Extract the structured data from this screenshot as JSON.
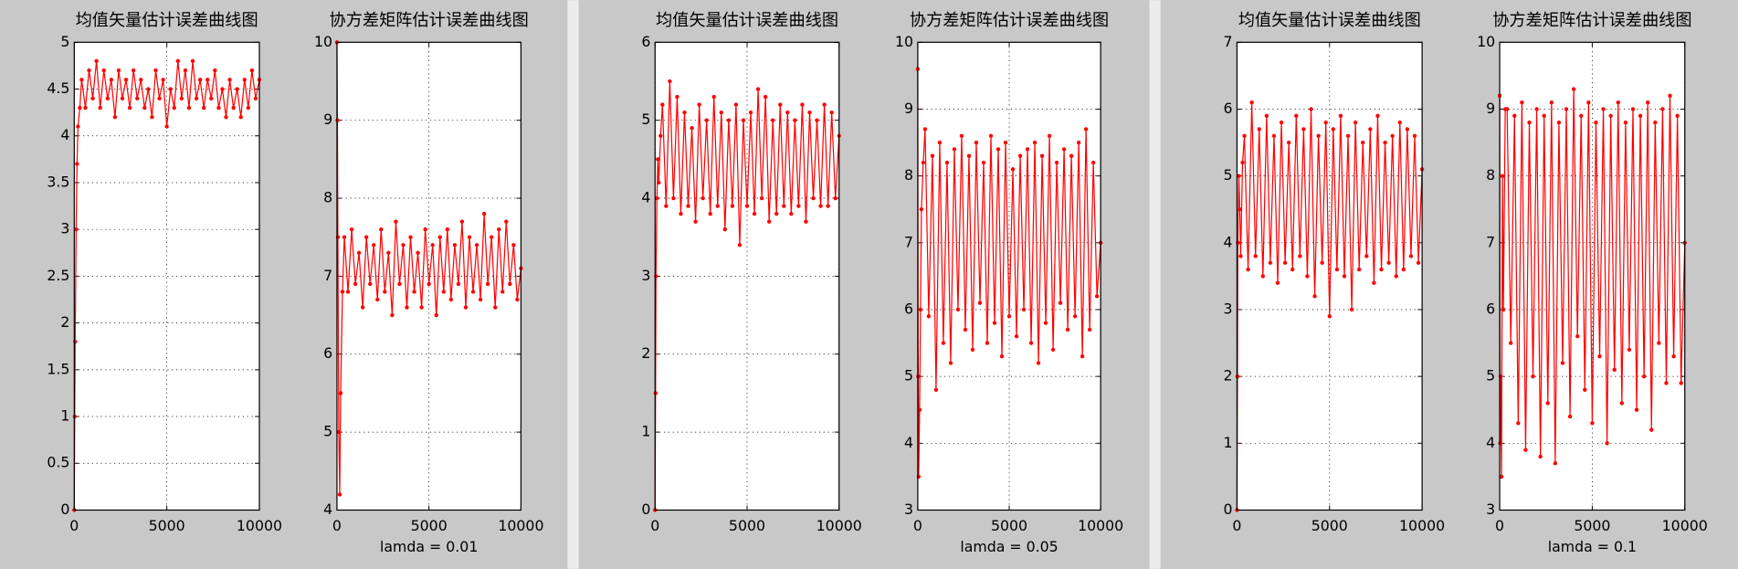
{
  "chart_data": [
    {
      "type": "line",
      "title": "均值矢量估计误差曲线图",
      "color": "#ff0000",
      "grid": true,
      "xlim": [
        0,
        10000
      ],
      "xticks": [
        0,
        5000,
        10000
      ],
      "ylim": [
        0,
        5
      ],
      "yticks": [
        0,
        0.5,
        1,
        1.5,
        2,
        2.5,
        3,
        3.5,
        4,
        4.5,
        5
      ],
      "x": [
        0,
        25,
        50,
        100,
        150,
        200,
        300,
        400,
        600,
        800,
        1000,
        1200,
        1400,
        1600,
        1800,
        2000,
        2200,
        2400,
        2600,
        2800,
        3000,
        3200,
        3400,
        3600,
        3800,
        4000,
        4200,
        4400,
        4600,
        4800,
        5000,
        5200,
        5400,
        5600,
        5800,
        6000,
        6200,
        6400,
        6600,
        6800,
        7000,
        7200,
        7400,
        7600,
        7800,
        8000,
        8200,
        8400,
        8600,
        8800,
        9000,
        9200,
        9400,
        9600,
        9800,
        10000
      ],
      "values": [
        0,
        1.0,
        1.8,
        3.0,
        3.7,
        4.1,
        4.3,
        4.6,
        4.3,
        4.7,
        4.4,
        4.8,
        4.3,
        4.7,
        4.4,
        4.6,
        4.2,
        4.7,
        4.4,
        4.6,
        4.3,
        4.7,
        4.4,
        4.6,
        4.3,
        4.5,
        4.2,
        4.7,
        4.4,
        4.6,
        4.1,
        4.5,
        4.3,
        4.8,
        4.4,
        4.7,
        4.3,
        4.8,
        4.4,
        4.6,
        4.3,
        4.6,
        4.4,
        4.7,
        4.3,
        4.5,
        4.2,
        4.6,
        4.3,
        4.5,
        4.2,
        4.6,
        4.3,
        4.7,
        4.4,
        4.6
      ]
    },
    {
      "type": "line",
      "title": "协方差矩阵估计误差曲线图",
      "x_label": "lamda = 0.01",
      "color": "#ff0000",
      "grid": true,
      "xlim": [
        0,
        10000
      ],
      "xticks": [
        0,
        5000,
        10000
      ],
      "ylim": [
        4,
        10
      ],
      "yticks": [
        4,
        5,
        6,
        7,
        8,
        9,
        10
      ],
      "x": [
        0,
        25,
        50,
        100,
        150,
        200,
        300,
        400,
        600,
        800,
        1000,
        1200,
        1400,
        1600,
        1800,
        2000,
        2200,
        2400,
        2600,
        2800,
        3000,
        3200,
        3400,
        3600,
        3800,
        4000,
        4200,
        4400,
        4600,
        4800,
        5000,
        5200,
        5400,
        5600,
        5800,
        6000,
        6200,
        6400,
        6600,
        6800,
        7000,
        7200,
        7400,
        7600,
        7800,
        8000,
        8200,
        8400,
        8600,
        8800,
        9000,
        9200,
        9400,
        9600,
        9800,
        10000
      ],
      "values": [
        10,
        9.0,
        7.5,
        5.0,
        4.2,
        5.5,
        6.8,
        7.5,
        6.8,
        7.6,
        6.9,
        7.3,
        6.6,
        7.5,
        6.9,
        7.4,
        6.7,
        7.6,
        6.8,
        7.3,
        6.5,
        7.7,
        6.9,
        7.4,
        6.6,
        7.5,
        6.8,
        7.3,
        6.6,
        7.6,
        6.9,
        7.4,
        6.5,
        7.5,
        6.8,
        7.6,
        6.7,
        7.4,
        6.9,
        7.7,
        6.6,
        7.5,
        6.8,
        7.4,
        6.7,
        7.8,
        6.9,
        7.5,
        6.6,
        7.6,
        6.8,
        7.7,
        6.9,
        7.4,
        6.7,
        7.1
      ]
    },
    {
      "type": "line",
      "title": "均值矢量估计误差曲线图",
      "color": "#ff0000",
      "grid": true,
      "xlim": [
        0,
        10000
      ],
      "xticks": [
        0,
        5000,
        10000
      ],
      "ylim": [
        0,
        6
      ],
      "yticks": [
        0,
        1,
        2,
        3,
        4,
        5,
        6
      ],
      "x": [
        0,
        25,
        50,
        100,
        150,
        200,
        300,
        400,
        600,
        800,
        1000,
        1200,
        1400,
        1600,
        1800,
        2000,
        2200,
        2400,
        2600,
        2800,
        3000,
        3200,
        3400,
        3600,
        3800,
        4000,
        4200,
        4400,
        4600,
        4800,
        5000,
        5200,
        5400,
        5600,
        5800,
        6000,
        6200,
        6400,
        6600,
        6800,
        7000,
        7200,
        7400,
        7600,
        7800,
        8000,
        8200,
        8400,
        8600,
        8800,
        9000,
        9200,
        9400,
        9600,
        9800,
        10000
      ],
      "values": [
        0,
        1.5,
        3.0,
        4.0,
        4.5,
        4.2,
        4.8,
        5.2,
        3.9,
        5.5,
        4.0,
        5.3,
        3.8,
        5.1,
        3.9,
        4.9,
        3.7,
        5.2,
        4.0,
        5.0,
        3.8,
        5.3,
        3.9,
        5.1,
        3.6,
        5.0,
        3.9,
        5.2,
        3.4,
        5.0,
        3.9,
        5.1,
        3.8,
        5.4,
        4.0,
        5.3,
        3.7,
        5.0,
        3.8,
        5.2,
        3.9,
        5.1,
        3.8,
        5.0,
        3.9,
        5.2,
        3.7,
        5.1,
        4.0,
        5.0,
        3.9,
        5.2,
        3.9,
        5.1,
        4.0,
        4.8
      ]
    },
    {
      "type": "line",
      "title": "协方差矩阵估计误差曲线图",
      "x_label": "lamda = 0.05",
      "color": "#ff0000",
      "grid": true,
      "xlim": [
        0,
        10000
      ],
      "xticks": [
        0,
        5000,
        10000
      ],
      "ylim": [
        3,
        10
      ],
      "yticks": [
        3,
        4,
        5,
        6,
        7,
        8,
        9,
        10
      ],
      "x": [
        0,
        25,
        50,
        100,
        150,
        200,
        300,
        400,
        600,
        800,
        1000,
        1200,
        1400,
        1600,
        1800,
        2000,
        2200,
        2400,
        2600,
        2800,
        3000,
        3200,
        3400,
        3600,
        3800,
        4000,
        4200,
        4400,
        4600,
        4800,
        5000,
        5200,
        5400,
        5600,
        5800,
        6000,
        6200,
        6400,
        6600,
        6800,
        7000,
        7200,
        7400,
        7600,
        7800,
        8000,
        8200,
        8400,
        8600,
        8800,
        9000,
        9200,
        9400,
        9600,
        9800,
        10000
      ],
      "values": [
        9.6,
        5.0,
        3.5,
        4.5,
        6.0,
        7.5,
        8.2,
        8.7,
        5.9,
        8.3,
        4.8,
        8.5,
        5.5,
        8.2,
        5.2,
        8.4,
        6.0,
        8.6,
        5.7,
        8.3,
        5.4,
        8.5,
        6.1,
        8.2,
        5.5,
        8.6,
        5.8,
        8.4,
        5.3,
        8.5,
        5.9,
        8.1,
        5.6,
        8.3,
        6.0,
        8.4,
        5.5,
        8.5,
        5.2,
        8.3,
        5.8,
        8.6,
        5.4,
        8.2,
        6.1,
        8.4,
        5.7,
        8.3,
        5.9,
        8.5,
        5.3,
        8.7,
        5.7,
        8.2,
        6.2,
        7.0
      ]
    },
    {
      "type": "line",
      "title": "均值矢量估计误差曲线图",
      "color": "#ff0000",
      "grid": true,
      "xlim": [
        0,
        10000
      ],
      "xticks": [
        0,
        5000,
        10000
      ],
      "ylim": [
        0,
        7
      ],
      "yticks": [
        0,
        1,
        2,
        3,
        4,
        5,
        6,
        7
      ],
      "x": [
        0,
        25,
        50,
        100,
        150,
        200,
        300,
        400,
        600,
        800,
        1000,
        1200,
        1400,
        1600,
        1800,
        2000,
        2200,
        2400,
        2600,
        2800,
        3000,
        3200,
        3400,
        3600,
        3800,
        4000,
        4200,
        4400,
        4600,
        4800,
        5000,
        5200,
        5400,
        5600,
        5800,
        6000,
        6200,
        6400,
        6600,
        6800,
        7000,
        7200,
        7400,
        7600,
        7800,
        8000,
        8200,
        8400,
        8600,
        8800,
        9000,
        9200,
        9400,
        9600,
        9800,
        10000
      ],
      "values": [
        0,
        2.0,
        4.0,
        5.0,
        4.5,
        3.8,
        5.2,
        5.6,
        3.6,
        6.1,
        3.8,
        5.7,
        3.5,
        5.9,
        3.7,
        5.6,
        3.4,
        5.8,
        3.7,
        5.5,
        3.6,
        5.9,
        3.8,
        5.7,
        3.5,
        6.0,
        3.2,
        5.6,
        3.7,
        5.8,
        2.9,
        5.7,
        3.6,
        5.9,
        3.5,
        5.6,
        3.0,
        5.8,
        3.6,
        5.5,
        3.8,
        5.7,
        3.4,
        5.9,
        3.6,
        5.5,
        3.7,
        5.6,
        3.5,
        5.8,
        3.6,
        5.7,
        3.8,
        5.6,
        3.7,
        5.1
      ]
    },
    {
      "type": "line",
      "title": "协方差矩阵估计误差曲线图",
      "x_label": "lamda = 0.1",
      "color": "#ff0000",
      "grid": true,
      "xlim": [
        0,
        10000
      ],
      "xticks": [
        0,
        5000,
        10000
      ],
      "ylim": [
        3,
        10
      ],
      "yticks": [
        3,
        4,
        5,
        6,
        7,
        8,
        9,
        10
      ],
      "x": [
        0,
        25,
        50,
        100,
        150,
        200,
        300,
        400,
        600,
        800,
        1000,
        1200,
        1400,
        1600,
        1800,
        2000,
        2200,
        2400,
        2600,
        2800,
        3000,
        3200,
        3400,
        3600,
        3800,
        4000,
        4200,
        4400,
        4600,
        4800,
        5000,
        5200,
        5400,
        5600,
        5800,
        6000,
        6200,
        6400,
        6600,
        6800,
        7000,
        7200,
        7400,
        7600,
        7800,
        8000,
        8200,
        8400,
        8600,
        8800,
        9000,
        9200,
        9400,
        9600,
        9800,
        10000
      ],
      "values": [
        9.2,
        4.0,
        5.0,
        3.5,
        8.0,
        6.0,
        9.0,
        9.0,
        5.5,
        8.9,
        4.3,
        9.1,
        3.9,
        8.8,
        5.0,
        9.0,
        3.8,
        8.9,
        4.6,
        9.1,
        3.7,
        8.8,
        5.2,
        9.0,
        4.4,
        9.3,
        5.6,
        8.9,
        4.8,
        9.1,
        4.3,
        8.8,
        5.3,
        9.0,
        4.0,
        8.9,
        5.1,
        9.1,
        4.6,
        8.8,
        5.4,
        9.0,
        4.5,
        8.9,
        5.0,
        9.1,
        4.2,
        8.8,
        5.5,
        9.0,
        4.9,
        9.2,
        5.3,
        8.9,
        4.9,
        7.0
      ]
    }
  ]
}
